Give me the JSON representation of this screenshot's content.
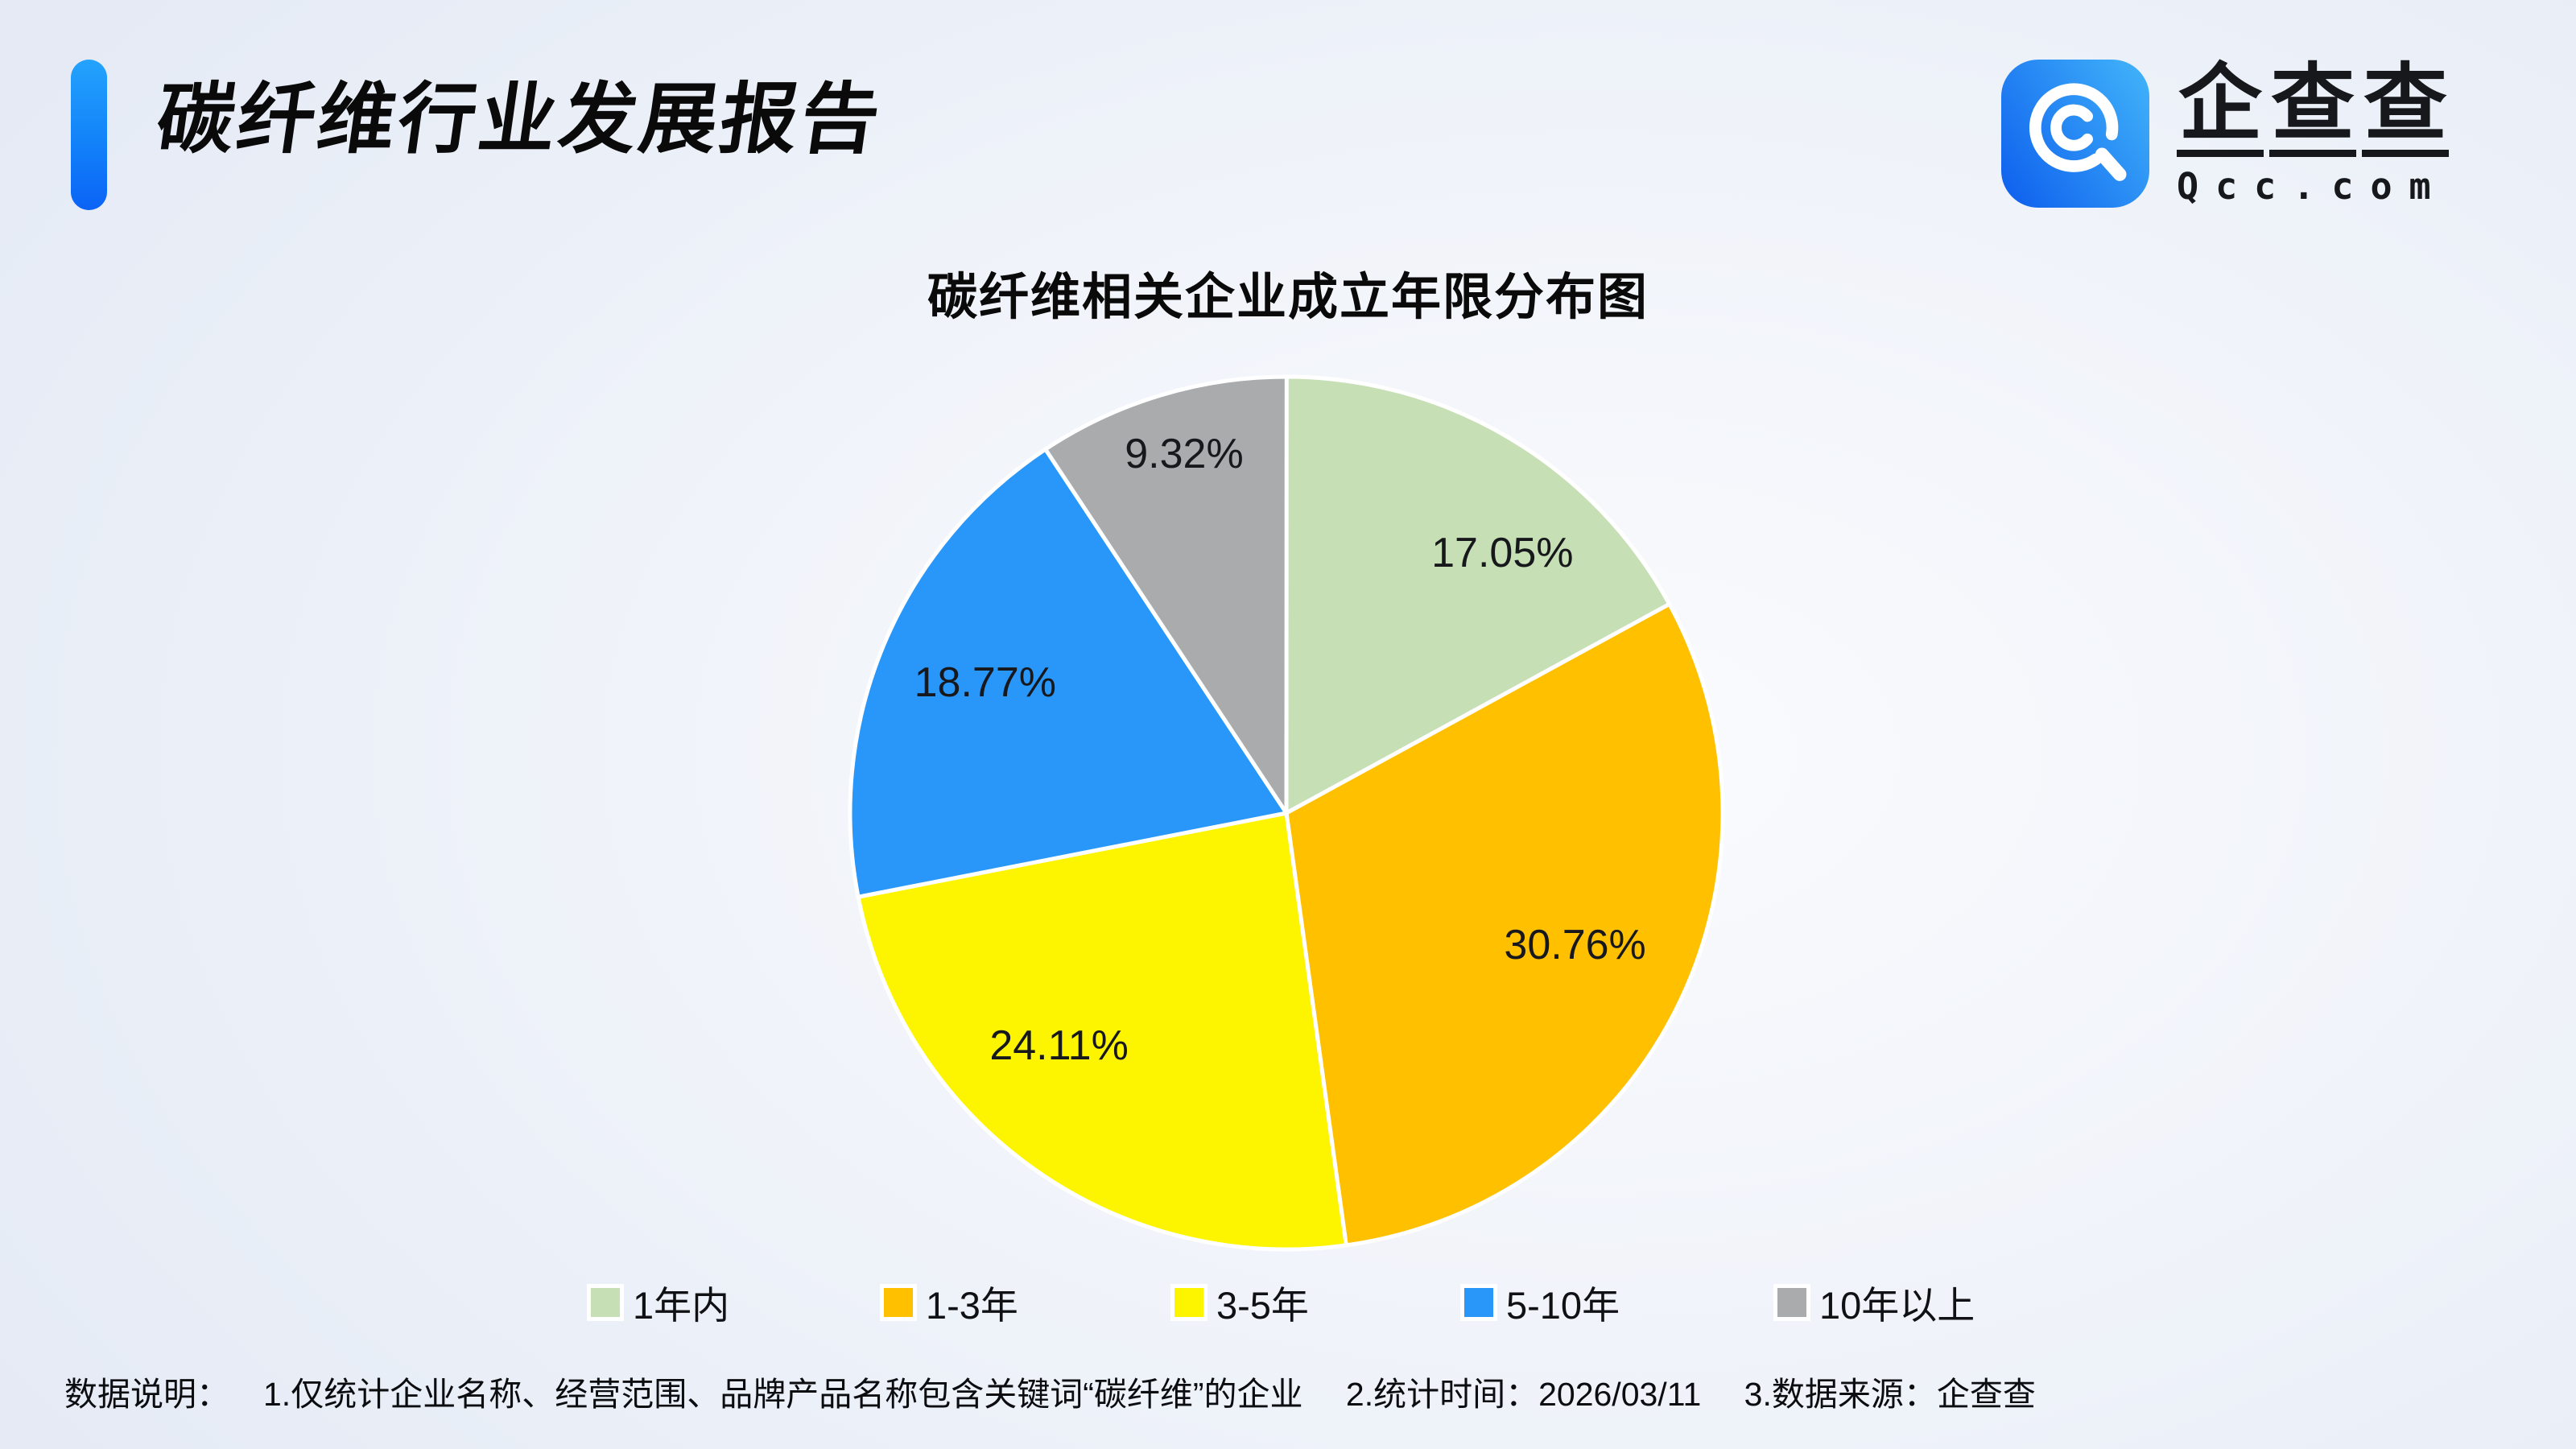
{
  "header": {
    "title": "碳纤维行业发展报告",
    "logo": {
      "icon": "qcc-magnifier-icon",
      "brand_chars": [
        "企",
        "查",
        "查"
      ],
      "brand_cn": "企查查",
      "brand_en": "Qcc.com"
    }
  },
  "chart_data": {
    "type": "pie",
    "title": "碳纤维相关企业成立年限分布图",
    "categories": [
      "1年内",
      "1-3年",
      "3-5年",
      "5-10年",
      "10年以上"
    ],
    "values": [
      17.05,
      30.76,
      24.11,
      18.77,
      9.32
    ],
    "labels": [
      "17.05%",
      "30.76%",
      "24.11%",
      "18.77%",
      "9.32%"
    ],
    "unit": "%",
    "colors": [
      "#C6DFB4",
      "#FFC000",
      "#FDF500",
      "#2997FA",
      "#A9ABAD"
    ],
    "start_angle_deg": 0,
    "direction": "clockwise",
    "legend_position": "bottom",
    "separator_color": "#FFFFFF"
  },
  "footer": {
    "label": "数据说明：",
    "notes": [
      "1.仅统计企业名称、经营范围、品牌产品名称包含关键词“碳纤维”的企业",
      "2.统计时间：2026/03/11",
      "3.数据来源：企查查"
    ]
  },
  "theme": {
    "accent_bar_gradient": [
      "#24A3FD",
      "#0B63F6"
    ],
    "logo_gradient": [
      "#1063EE",
      "#3FB0F9"
    ],
    "background": "#EDF1F9",
    "text_color": "#111111"
  }
}
